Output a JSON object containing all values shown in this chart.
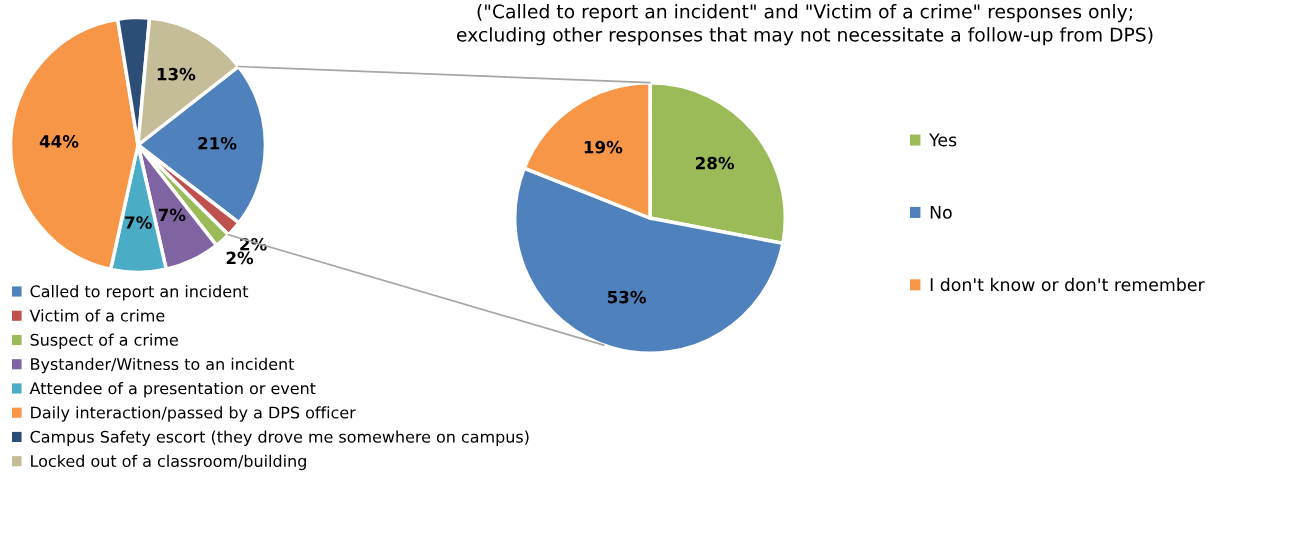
{
  "chart_data": [
    {
      "type": "pie",
      "categories": [
        "Called to report an incident",
        "Victim of a crime",
        "Suspect of a crime",
        "Bystander/Witness to an incident",
        "Attendee of a presentation or event",
        "Daily interaction/passed by a DPS officer",
        "Campus Safety escort (they drove me somewhere on campus)",
        "Locked out of a classroom/building"
      ],
      "values": [
        21,
        2,
        2,
        7,
        7,
        44,
        4,
        13
      ],
      "value_labels": [
        "21%",
        "2%",
        "2%",
        "7%",
        "7%",
        "44%",
        null,
        "13%"
      ],
      "colors": [
        "#4f81bd",
        "#c0504d",
        "#9bbb59",
        "#8064a2",
        "#4bacc6",
        "#f79646",
        "#2c4d75",
        "#c4bd97"
      ],
      "legend": "bottom"
    },
    {
      "type": "pie",
      "subtitle": "(\"Called to report an incident\" and \"Victim of a crime\" responses only;\nexcluding other responses that may not necessitate a follow-up from DPS)",
      "categories": [
        "Yes",
        "No",
        "I don't know or don't remember"
      ],
      "values": [
        28,
        53,
        19
      ],
      "value_labels": [
        "28%",
        "53%",
        "19%"
      ],
      "colors": [
        "#9bbb59",
        "#4f81bd",
        "#f79646"
      ],
      "legend": "right"
    }
  ]
}
